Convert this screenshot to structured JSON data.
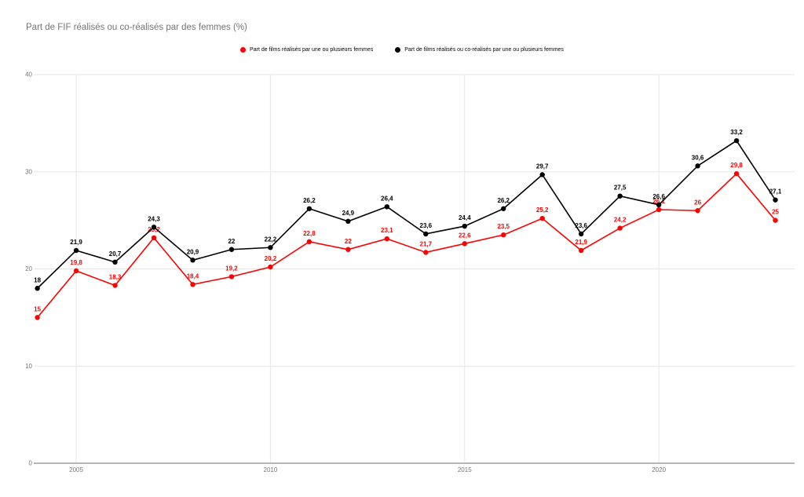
{
  "title": "Part de FIF réalisés ou co-réalisés par des femmes (%)",
  "legend": {
    "items": [
      {
        "label": "Part de films réalisés par une ou plusieurs femmes",
        "color": "#ff0000"
      },
      {
        "label": "Part de films réalisés ou co-réalisés par une ou plusieurs femmes",
        "color": "#000000"
      }
    ]
  },
  "chart_data": {
    "type": "line",
    "title": "Part de FIF réalisés ou co-réalisés par des femmes (%)",
    "x": [
      2004,
      2005,
      2006,
      2007,
      2008,
      2009,
      2010,
      2011,
      2012,
      2013,
      2014,
      2015,
      2016,
      2017,
      2018,
      2019,
      2020,
      2021,
      2022,
      2023
    ],
    "series": [
      {
        "name": "Part de films réalisés par une ou plusieurs femmes",
        "color": "#ff0000",
        "values": [
          15,
          19.8,
          18.3,
          23.2,
          18.4,
          19.2,
          20.2,
          22.8,
          22,
          23.1,
          21.7,
          22.6,
          23.5,
          25.2,
          21.9,
          24.2,
          26.1,
          26,
          29.8,
          25
        ],
        "labels": [
          "15",
          "19,8",
          "18,3",
          "23,2",
          "18,4",
          "19,2",
          "20,2",
          "22,8",
          "22",
          "23,1",
          "21,7",
          "22,6",
          "23,5",
          "25,2",
          "21,9",
          "24,2",
          "26,1",
          "26",
          "29,8",
          "25"
        ]
      },
      {
        "name": "Part de films réalisés ou co-réalisés par une ou plusieurs femmes",
        "color": "#000000",
        "values": [
          18,
          21.9,
          20.7,
          24.3,
          20.9,
          22,
          22.2,
          26.2,
          24.9,
          26.4,
          23.6,
          24.4,
          26.2,
          29.7,
          23.6,
          27.5,
          26.6,
          30.6,
          33.2,
          27.1
        ],
        "labels": [
          "18",
          "21,9",
          "20,7",
          "24,3",
          "20,9",
          "22",
          "22,2",
          "26,2",
          "24,9",
          "26,4",
          "23,6",
          "24,4",
          "26,2",
          "29,7",
          "23,6",
          "27,5",
          "26,6",
          "30,6",
          "33,2",
          "27,1"
        ]
      }
    ],
    "xticks": [
      2005,
      2010,
      2015,
      2020
    ],
    "yticks": [
      0,
      10,
      20,
      30,
      40
    ],
    "ytick_labels": [
      "0",
      "10",
      "20",
      "30",
      "40"
    ],
    "ylim": [
      0,
      40
    ],
    "grid": true,
    "legend_position": "top",
    "colors": {
      "gridline": "#e6e6e6",
      "baseline": "#b5b5b5",
      "tick_text": "#757575",
      "background": "#ffffff"
    }
  }
}
